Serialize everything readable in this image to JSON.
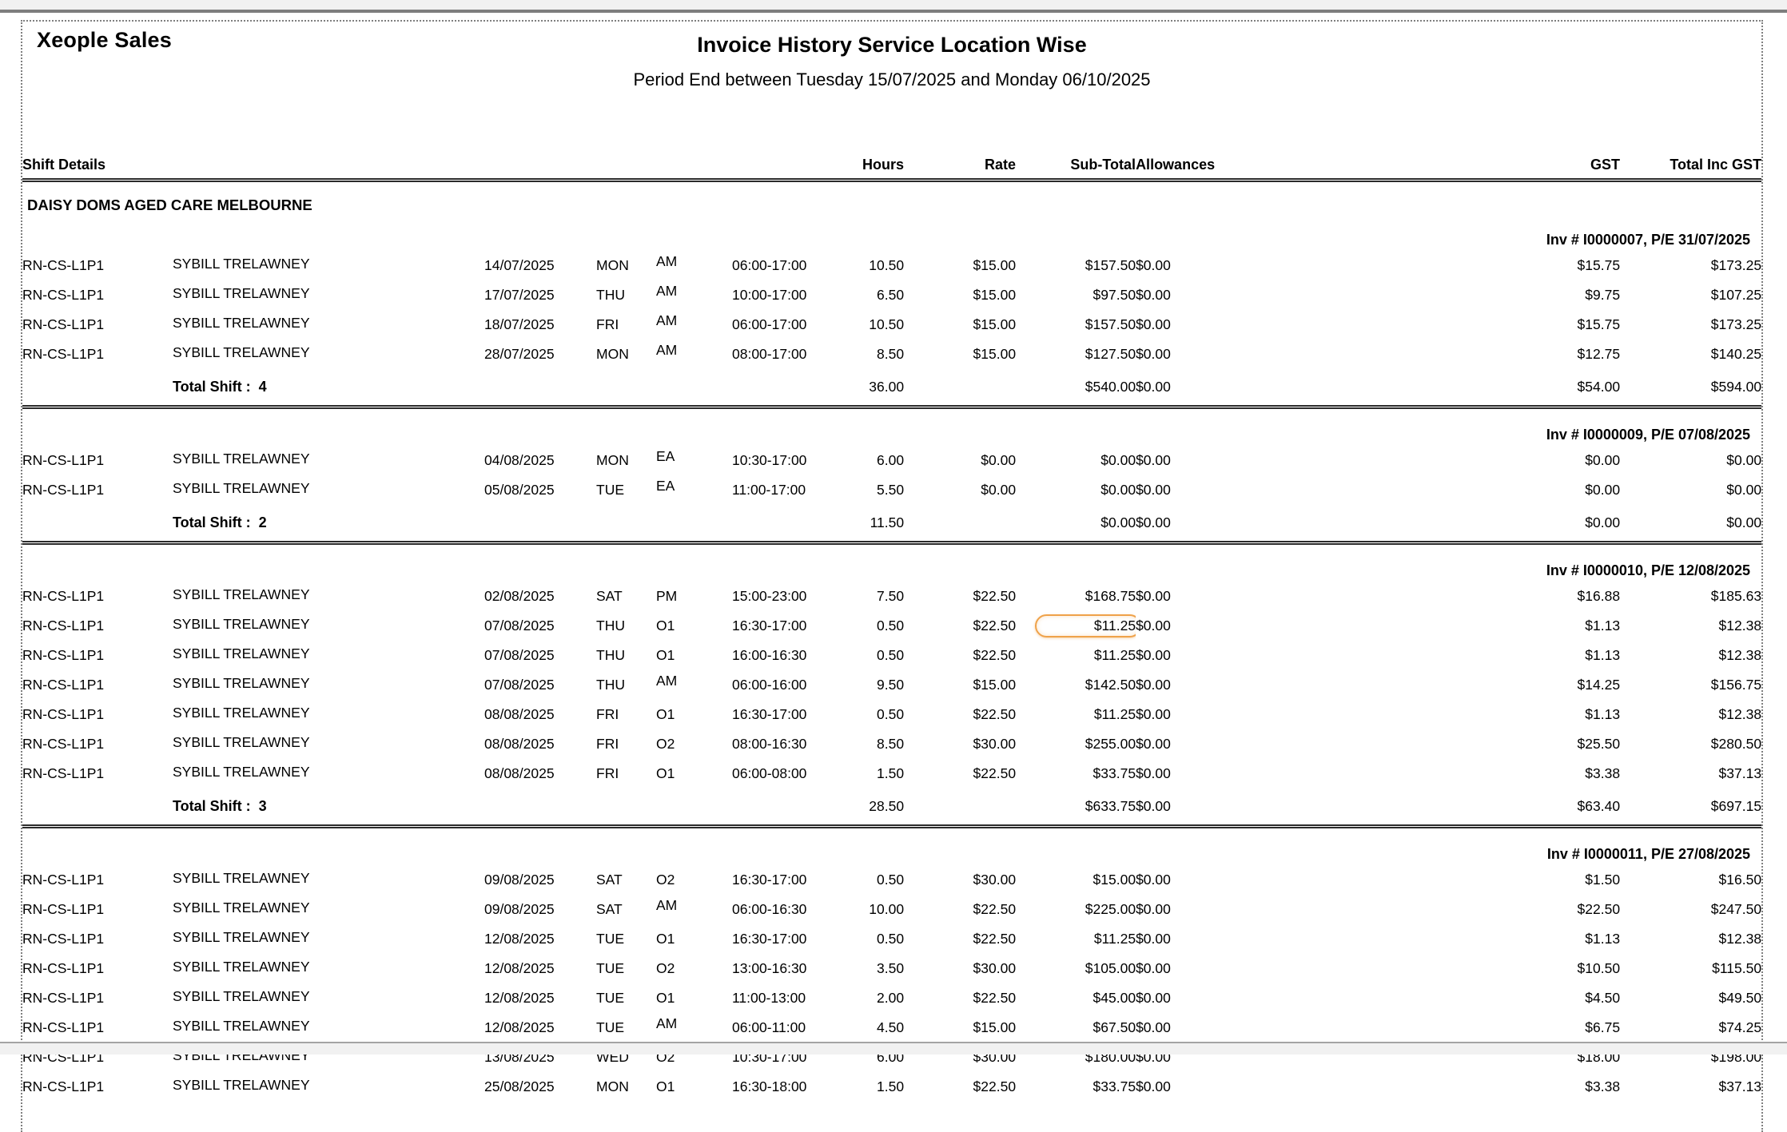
{
  "app": {
    "vendor_title": "Xeople Sales"
  },
  "report": {
    "title": "Invoice History Service Location Wise",
    "period_line": "Period End between Tuesday 15/07/2025 and Monday 06/10/2025",
    "location": "DAISY DOMS AGED CARE MELBOURNE",
    "columns": {
      "shift_details": "Shift Details",
      "hours": "Hours",
      "rate": "Rate",
      "sub_total": "Sub-Total",
      "allowances": "Allowances",
      "gst": "GST",
      "total_inc_gst": "Total Inc GST"
    },
    "highlight_color": "#efa24a",
    "groups": [
      {
        "invoice_label": "Inv # I0000007, P/E  31/07/2025",
        "rows": [
          {
            "role": "RN-CS-L1P1",
            "name": "SYBILL TRELAWNEY",
            "date": "14/07/2025",
            "day": "MON",
            "shift": "AM",
            "time": "06:00-17:00",
            "hours": "10.50",
            "rate": "$15.00",
            "sub_total": "$157.50",
            "allowances": "$0.00",
            "gst": "$15.75",
            "total": "$173.25"
          },
          {
            "role": "RN-CS-L1P1",
            "name": "SYBILL TRELAWNEY",
            "date": "17/07/2025",
            "day": "THU",
            "shift": "AM",
            "time": "10:00-17:00",
            "hours": "6.50",
            "rate": "$15.00",
            "sub_total": "$97.50",
            "allowances": "$0.00",
            "gst": "$9.75",
            "total": "$107.25"
          },
          {
            "role": "RN-CS-L1P1",
            "name": "SYBILL TRELAWNEY",
            "date": "18/07/2025",
            "day": "FRI",
            "shift": "AM",
            "time": "06:00-17:00",
            "hours": "10.50",
            "rate": "$15.00",
            "sub_total": "$157.50",
            "allowances": "$0.00",
            "gst": "$15.75",
            "total": "$173.25"
          },
          {
            "role": "RN-CS-L1P1",
            "name": "SYBILL TRELAWNEY",
            "date": "28/07/2025",
            "day": "MON",
            "shift": "AM",
            "time": "08:00-17:00",
            "hours": "8.50",
            "rate": "$15.00",
            "sub_total": "$127.50",
            "allowances": "$0.00",
            "gst": "$12.75",
            "total": "$140.25"
          }
        ],
        "totals": {
          "label": "Total Shift :",
          "count": "4",
          "hours": "36.00",
          "sub_total": "$540.00",
          "allowances": "$0.00",
          "gst": "$54.00",
          "total": "$594.00"
        }
      },
      {
        "invoice_label": "Inv # I0000009, P/E  07/08/2025",
        "rows": [
          {
            "role": "RN-CS-L1P1",
            "name": "SYBILL TRELAWNEY",
            "date": "04/08/2025",
            "day": "MON",
            "shift": "EA",
            "time": "10:30-17:00",
            "hours": "6.00",
            "rate": "$0.00",
            "sub_total": "$0.00",
            "allowances": "$0.00",
            "gst": "$0.00",
            "total": "$0.00"
          },
          {
            "role": "RN-CS-L1P1",
            "name": "SYBILL TRELAWNEY",
            "date": "05/08/2025",
            "day": "TUE",
            "shift": "EA",
            "time": "11:00-17:00",
            "hours": "5.50",
            "rate": "$0.00",
            "sub_total": "$0.00",
            "allowances": "$0.00",
            "gst": "$0.00",
            "total": "$0.00"
          }
        ],
        "totals": {
          "label": "Total Shift :",
          "count": "2",
          "hours": "11.50",
          "sub_total": "$0.00",
          "allowances": "$0.00",
          "gst": "$0.00",
          "total": "$0.00"
        }
      },
      {
        "invoice_label": "Inv # I0000010, P/E  12/08/2025",
        "rows": [
          {
            "role": "RN-CS-L1P1",
            "name": "SYBILL TRELAWNEY",
            "date": "02/08/2025",
            "day": "SAT",
            "shift": "PM",
            "time": "15:00-23:00",
            "hours": "7.50",
            "rate": "$22.50",
            "sub_total": "$168.75",
            "allowances": "$0.00",
            "gst": "$16.88",
            "total": "$185.63"
          },
          {
            "role": "RN-CS-L1P1",
            "name": "SYBILL TRELAWNEY",
            "date": "07/08/2025",
            "day": "THU",
            "shift": "O1",
            "time": "16:30-17:00",
            "hours": "0.50",
            "rate": "$22.50",
            "sub_total": "$11.25",
            "allowances": "$0.00",
            "gst": "$1.13",
            "total": "$12.38",
            "highlight": "sub_total"
          },
          {
            "role": "RN-CS-L1P1",
            "name": "SYBILL TRELAWNEY",
            "date": "07/08/2025",
            "day": "THU",
            "shift": "O1",
            "time": "16:00-16:30",
            "hours": "0.50",
            "rate": "$22.50",
            "sub_total": "$11.25",
            "allowances": "$0.00",
            "gst": "$1.13",
            "total": "$12.38"
          },
          {
            "role": "RN-CS-L1P1",
            "name": "SYBILL TRELAWNEY",
            "date": "07/08/2025",
            "day": "THU",
            "shift": "AM",
            "time": "06:00-16:00",
            "hours": "9.50",
            "rate": "$15.00",
            "sub_total": "$142.50",
            "allowances": "$0.00",
            "gst": "$14.25",
            "total": "$156.75"
          },
          {
            "role": "RN-CS-L1P1",
            "name": "SYBILL TRELAWNEY",
            "date": "08/08/2025",
            "day": "FRI",
            "shift": "O1",
            "time": "16:30-17:00",
            "hours": "0.50",
            "rate": "$22.50",
            "sub_total": "$11.25",
            "allowances": "$0.00",
            "gst": "$1.13",
            "total": "$12.38"
          },
          {
            "role": "RN-CS-L1P1",
            "name": "SYBILL TRELAWNEY",
            "date": "08/08/2025",
            "day": "FRI",
            "shift": "O2",
            "time": "08:00-16:30",
            "hours": "8.50",
            "rate": "$30.00",
            "sub_total": "$255.00",
            "allowances": "$0.00",
            "gst": "$25.50",
            "total": "$280.50"
          },
          {
            "role": "RN-CS-L1P1",
            "name": "SYBILL TRELAWNEY",
            "date": "08/08/2025",
            "day": "FRI",
            "shift": "O1",
            "time": "06:00-08:00",
            "hours": "1.50",
            "rate": "$22.50",
            "sub_total": "$33.75",
            "allowances": "$0.00",
            "gst": "$3.38",
            "total": "$37.13"
          }
        ],
        "totals": {
          "label": "Total Shift :",
          "count": "3",
          "hours": "28.50",
          "sub_total": "$633.75",
          "allowances": "$0.00",
          "gst": "$63.40",
          "total": "$697.15"
        }
      },
      {
        "invoice_label": "Inv # I0000011, P/E  27/08/2025",
        "rows": [
          {
            "role": "RN-CS-L1P1",
            "name": "SYBILL TRELAWNEY",
            "date": "09/08/2025",
            "day": "SAT",
            "shift": "O2",
            "time": "16:30-17:00",
            "hours": "0.50",
            "rate": "$30.00",
            "sub_total": "$15.00",
            "allowances": "$0.00",
            "gst": "$1.50",
            "total": "$16.50"
          },
          {
            "role": "RN-CS-L1P1",
            "name": "SYBILL TRELAWNEY",
            "date": "09/08/2025",
            "day": "SAT",
            "shift": "AM",
            "time": "06:00-16:30",
            "hours": "10.00",
            "rate": "$22.50",
            "sub_total": "$225.00",
            "allowances": "$0.00",
            "gst": "$22.50",
            "total": "$247.50"
          },
          {
            "role": "RN-CS-L1P1",
            "name": "SYBILL TRELAWNEY",
            "date": "12/08/2025",
            "day": "TUE",
            "shift": "O1",
            "time": "16:30-17:00",
            "hours": "0.50",
            "rate": "$22.50",
            "sub_total": "$11.25",
            "allowances": "$0.00",
            "gst": "$1.13",
            "total": "$12.38"
          },
          {
            "role": "RN-CS-L1P1",
            "name": "SYBILL TRELAWNEY",
            "date": "12/08/2025",
            "day": "TUE",
            "shift": "O2",
            "time": "13:00-16:30",
            "hours": "3.50",
            "rate": "$30.00",
            "sub_total": "$105.00",
            "allowances": "$0.00",
            "gst": "$10.50",
            "total": "$115.50"
          },
          {
            "role": "RN-CS-L1P1",
            "name": "SYBILL TRELAWNEY",
            "date": "12/08/2025",
            "day": "TUE",
            "shift": "O1",
            "time": "11:00-13:00",
            "hours": "2.00",
            "rate": "$22.50",
            "sub_total": "$45.00",
            "allowances": "$0.00",
            "gst": "$4.50",
            "total": "$49.50"
          },
          {
            "role": "RN-CS-L1P1",
            "name": "SYBILL TRELAWNEY",
            "date": "12/08/2025",
            "day": "TUE",
            "shift": "AM",
            "time": "06:00-11:00",
            "hours": "4.50",
            "rate": "$15.00",
            "sub_total": "$67.50",
            "allowances": "$0.00",
            "gst": "$6.75",
            "total": "$74.25"
          },
          {
            "role": "RN-CS-L1P1",
            "name": "SYBILL TRELAWNEY",
            "date": "13/08/2025",
            "day": "WED",
            "shift": "O2",
            "time": "10:30-17:00",
            "hours": "6.00",
            "rate": "$30.00",
            "sub_total": "$180.00",
            "allowances": "$0.00",
            "gst": "$18.00",
            "total": "$198.00"
          },
          {
            "role": "RN-CS-L1P1",
            "name": "SYBILL TRELAWNEY",
            "date": "25/08/2025",
            "day": "MON",
            "shift": "O1",
            "time": "16:30-18:00",
            "hours": "1.50",
            "rate": "$22.50",
            "sub_total": "$33.75",
            "allowances": "$0.00",
            "gst": "$3.38",
            "total": "$37.13"
          }
        ],
        "totals": null
      }
    ]
  }
}
